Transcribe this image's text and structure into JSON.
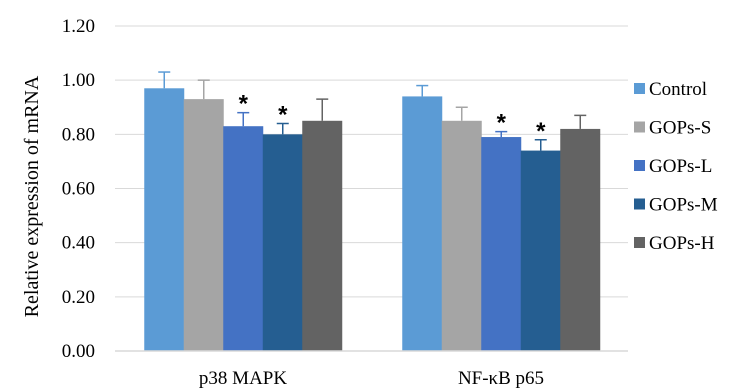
{
  "chart_data": {
    "type": "bar",
    "title": "",
    "xlabel": "",
    "ylabel": "Relative expression of mRNA",
    "ylim": [
      0,
      1.2
    ],
    "yticks": [
      "0.00",
      "0.20",
      "0.40",
      "0.60",
      "0.80",
      "1.00",
      "1.20"
    ],
    "grid": true,
    "legend_position": "right",
    "categories": [
      "p38 MAPK",
      "NF-κB p65"
    ],
    "series": [
      {
        "name": "Control",
        "color": "#5b9bd5",
        "values": [
          0.97,
          0.94
        ],
        "errors": [
          0.06,
          0.04
        ],
        "significant": [
          false,
          false
        ]
      },
      {
        "name": "GOPs-S",
        "color": "#a5a5a5",
        "values": [
          0.93,
          0.85
        ],
        "errors": [
          0.07,
          0.05
        ],
        "significant": [
          false,
          false
        ]
      },
      {
        "name": "GOPs-L",
        "color": "#4472c4",
        "values": [
          0.83,
          0.79
        ],
        "errors": [
          0.05,
          0.02
        ],
        "significant": [
          true,
          true
        ]
      },
      {
        "name": "GOPs-M",
        "color": "#255e91",
        "values": [
          0.8,
          0.74
        ],
        "errors": [
          0.04,
          0.04
        ],
        "significant": [
          true,
          true
        ]
      },
      {
        "name": "GOPs-H",
        "color": "#636363",
        "values": [
          0.85,
          0.82
        ],
        "errors": [
          0.08,
          0.05
        ],
        "significant": [
          false,
          false
        ]
      }
    ],
    "significance_marker": "*"
  }
}
